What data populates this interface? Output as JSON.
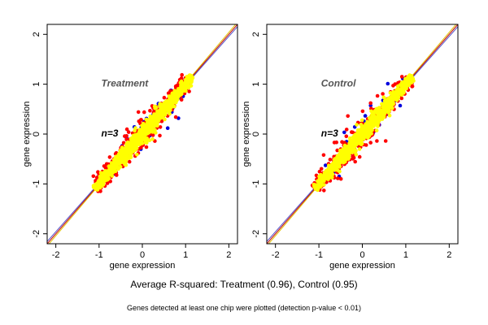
{
  "chart_data": [
    {
      "type": "scatter",
      "panel_label": "Treatment",
      "count_label": "n=3",
      "xlabel": "gene expression",
      "ylabel": "gene expression",
      "xlim": [
        -2.2,
        2.2
      ],
      "ylim": [
        -2.2,
        2.2
      ],
      "xticks": [
        -2,
        -1,
        0,
        1,
        2
      ],
      "yticks": [
        -2,
        -1,
        0,
        1,
        2
      ],
      "grid": false,
      "reference_lines": [
        {
          "color": "#e0c000",
          "slope": 1.02,
          "intercept": 0.0
        },
        {
          "color": "#c00000",
          "slope": 1.0,
          "intercept": 0.0
        },
        {
          "color": "#5050c8",
          "slope": 0.98,
          "intercept": 0.0
        }
      ],
      "series": [
        {
          "color": "#0000dd",
          "spread": 0.24,
          "count": 45,
          "x_range": [
            -1.0,
            1.1
          ],
          "seed": 11
        },
        {
          "color": "#ff0000",
          "spread": 0.2,
          "count": 320,
          "x_range": [
            -1.1,
            1.1
          ],
          "seed": 23
        },
        {
          "color": "#ffff00",
          "spread": 0.11,
          "count": 900,
          "x_range": [
            -1.1,
            1.15
          ],
          "seed": 37
        }
      ]
    },
    {
      "type": "scatter",
      "panel_label": "Control",
      "count_label": "n=3",
      "xlabel": "gene expression",
      "ylabel": "gene expression",
      "xlim": [
        -2.2,
        2.2
      ],
      "ylim": [
        -2.2,
        2.2
      ],
      "xticks": [
        -2,
        -1,
        0,
        1,
        2
      ],
      "yticks": [
        -2,
        -1,
        0,
        1,
        2
      ],
      "grid": false,
      "reference_lines": [
        {
          "color": "#e0c000",
          "slope": 1.02,
          "intercept": 0.0
        },
        {
          "color": "#c00000",
          "slope": 1.0,
          "intercept": 0.0
        },
        {
          "color": "#5050c8",
          "slope": 0.98,
          "intercept": 0.0
        }
      ],
      "series": [
        {
          "color": "#0000dd",
          "spread": 0.24,
          "count": 30,
          "x_range": [
            -1.0,
            1.1
          ],
          "seed": 51
        },
        {
          "color": "#ff0000",
          "spread": 0.21,
          "count": 330,
          "x_range": [
            -1.1,
            1.1
          ],
          "seed": 67
        },
        {
          "color": "#ffff00",
          "spread": 0.11,
          "count": 900,
          "x_range": [
            -1.1,
            1.15
          ],
          "seed": 79
        }
      ]
    }
  ],
  "caption_main": "Average R-squared: Treatment (0.96), Control (0.95)",
  "caption_sub": "Genes detected at least one chip were plotted (detection p-value < 0.01)"
}
